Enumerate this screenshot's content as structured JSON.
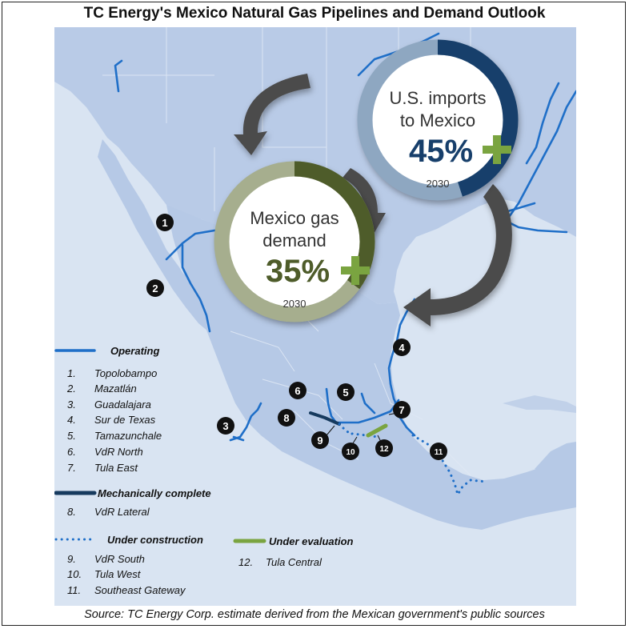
{
  "title": "TC Energy's Mexico Natural Gas Pipelines and Demand Outlook",
  "source": "Source: TC Energy Corp. estimate derived from the Mexican government's public sources",
  "colors": {
    "sea": "#d9e4f2",
    "land": "#b6c9e6",
    "operating": "#1f6fc8",
    "mech_complete": "#163a5e",
    "under_evaluation": "#7aa440",
    "marker": "#111111",
    "us_ring_light": "#8ea7c1",
    "us_ring_dark": "#173f6b",
    "mx_ring_light": "#a6ae8e",
    "mx_ring_dark": "#4e5c2a",
    "arrow": "#4b4b4b"
  },
  "us_callout": {
    "line1": "U.S. imports",
    "line2": "to Mexico",
    "value": "45%",
    "year": "2030",
    "share": 0.45
  },
  "mexico_callout": {
    "line1": "Mexico gas",
    "line2": "demand",
    "value": "35%",
    "year": "2030",
    "share": 0.35
  },
  "markers": [
    {
      "num": "1"
    },
    {
      "num": "2"
    },
    {
      "num": "3"
    },
    {
      "num": "4"
    },
    {
      "num": "5"
    },
    {
      "num": "6"
    },
    {
      "num": "7"
    },
    {
      "num": "8"
    },
    {
      "num": "9"
    },
    {
      "num": "10"
    },
    {
      "num": "11"
    },
    {
      "num": "12"
    }
  ],
  "legend": {
    "operating": {
      "heading": "Operating",
      "items": [
        {
          "num": "1.",
          "label": "Topolobampo"
        },
        {
          "num": "2.",
          "label": "Mazatlán"
        },
        {
          "num": "3.",
          "label": "Guadalajara"
        },
        {
          "num": "4.",
          "label": "Sur de Texas"
        },
        {
          "num": "5.",
          "label": "Tamazunchale"
        },
        {
          "num": "6.",
          "label": "VdR North"
        },
        {
          "num": "7.",
          "label": "Tula East"
        }
      ]
    },
    "mechanically_complete": {
      "heading": "Mechanically complete",
      "items": [
        {
          "num": "8.",
          "label": "VdR Lateral"
        }
      ]
    },
    "under_construction": {
      "heading": "Under construction",
      "items": [
        {
          "num": "9.",
          "label": "VdR South"
        },
        {
          "num": "10.",
          "label": "Tula West"
        },
        {
          "num": "11.",
          "label": "Southeast Gateway"
        }
      ]
    },
    "under_evaluation": {
      "heading": "Under evaluation",
      "items": [
        {
          "num": "12.",
          "label": "Tula Central"
        }
      ]
    }
  }
}
